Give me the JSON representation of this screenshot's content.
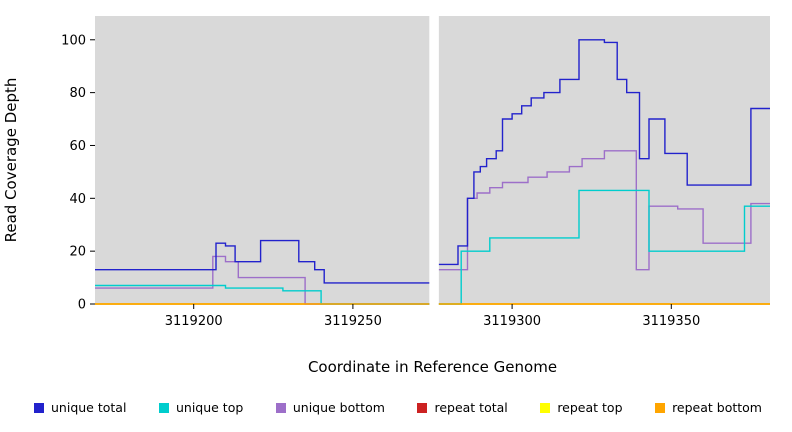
{
  "chart_data": {
    "type": "line",
    "step": true,
    "title": "",
    "xlabel": "Coordinate in Reference Genome",
    "ylabel": "Read Coverage Depth",
    "xlim": [
      3119169,
      3119381
    ],
    "ylim": [
      0,
      109
    ],
    "xticks": [
      3119200,
      3119250,
      3119300,
      3119350
    ],
    "yticks": [
      0,
      20,
      40,
      60,
      80,
      100
    ],
    "plot_bg": "#d9d9d9",
    "grid": false,
    "gap": [
      3119274,
      3119277
    ],
    "legend_position": "bottom",
    "legend": [
      {
        "label": "unique total",
        "color": "#2222cc"
      },
      {
        "label": "unique top",
        "color": "#00cdcd"
      },
      {
        "label": "unique bottom",
        "color": "#9d6fc9"
      },
      {
        "label": "repeat total",
        "color": "#cc2222"
      },
      {
        "label": "repeat top",
        "color": "#ffff00"
      },
      {
        "label": "repeat bottom",
        "color": "#ffa500"
      }
    ],
    "series": [
      {
        "name": "repeat total",
        "color": "#cc2222",
        "segments": [
          [
            [
              3119169,
              0
            ],
            [
              3119274,
              0
            ]
          ],
          [
            [
              3119277,
              0
            ],
            [
              3119381,
              0
            ]
          ]
        ]
      },
      {
        "name": "repeat top",
        "color": "#ffff00",
        "segments": [
          [
            [
              3119169,
              0
            ],
            [
              3119274,
              0
            ]
          ],
          [
            [
              3119277,
              0
            ],
            [
              3119381,
              0
            ]
          ]
        ]
      },
      {
        "name": "unique bottom",
        "color": "#9d6fc9",
        "segments": [
          [
            [
              3119169,
              6
            ],
            [
              3119206,
              18
            ],
            [
              3119210,
              16
            ],
            [
              3119214,
              10
            ],
            [
              3119235,
              0
            ],
            [
              3119274,
              0
            ]
          ],
          [
            [
              3119277,
              13
            ],
            [
              3119286,
              40
            ],
            [
              3119289,
              42
            ],
            [
              3119293,
              44
            ],
            [
              3119297,
              46
            ],
            [
              3119305,
              48
            ],
            [
              3119311,
              50
            ],
            [
              3119318,
              52
            ],
            [
              3119322,
              55
            ],
            [
              3119329,
              58
            ],
            [
              3119339,
              13
            ],
            [
              3119343,
              37
            ],
            [
              3119352,
              36
            ],
            [
              3119360,
              23
            ],
            [
              3119373,
              23
            ],
            [
              3119375,
              38
            ],
            [
              3119381,
              38
            ]
          ]
        ]
      },
      {
        "name": "unique top",
        "color": "#00cdcd",
        "segments": [
          [
            [
              3119169,
              7
            ],
            [
              3119210,
              6
            ],
            [
              3119228,
              5
            ],
            [
              3119240,
              0
            ],
            [
              3119274,
              0
            ]
          ],
          [
            [
              3119277,
              0
            ],
            [
              3119284,
              20
            ],
            [
              3119293,
              25
            ],
            [
              3119321,
              43
            ],
            [
              3119343,
              20
            ],
            [
              3119373,
              37
            ],
            [
              3119381,
              37
            ]
          ]
        ]
      },
      {
        "name": "repeat bottom",
        "color": "#ffa500",
        "segments": [
          [
            [
              3119169,
              0
            ],
            [
              3119274,
              0
            ]
          ],
          [
            [
              3119277,
              0
            ],
            [
              3119381,
              0
            ]
          ]
        ]
      },
      {
        "name": "unique total",
        "color": "#2222cc",
        "segments": [
          [
            [
              3119169,
              13
            ],
            [
              3119207,
              23
            ],
            [
              3119210,
              22
            ],
            [
              3119213,
              16
            ],
            [
              3119221,
              24
            ],
            [
              3119233,
              16
            ],
            [
              3119238,
              13
            ],
            [
              3119241,
              8
            ],
            [
              3119274,
              8
            ]
          ],
          [
            [
              3119277,
              15
            ],
            [
              3119283,
              22
            ],
            [
              3119286,
              40
            ],
            [
              3119288,
              50
            ],
            [
              3119290,
              52
            ],
            [
              3119292,
              55
            ],
            [
              3119295,
              58
            ],
            [
              3119297,
              70
            ],
            [
              3119300,
              72
            ],
            [
              3119303,
              75
            ],
            [
              3119306,
              78
            ],
            [
              3119310,
              80
            ],
            [
              3119315,
              85
            ],
            [
              3119321,
              100
            ],
            [
              3119329,
              99
            ],
            [
              3119333,
              85
            ],
            [
              3119336,
              80
            ],
            [
              3119340,
              55
            ],
            [
              3119343,
              70
            ],
            [
              3119348,
              57
            ],
            [
              3119355,
              45
            ],
            [
              3119373,
              45
            ],
            [
              3119375,
              74
            ],
            [
              3119381,
              74
            ]
          ]
        ]
      }
    ]
  }
}
